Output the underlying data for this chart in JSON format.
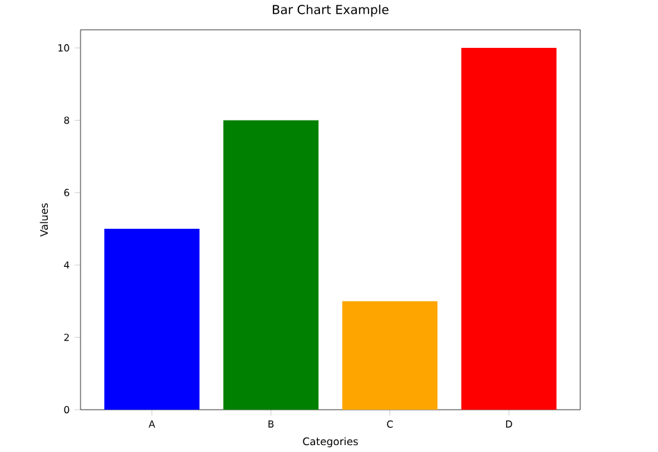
{
  "chart_data": {
    "type": "bar",
    "title": "Bar Chart Example",
    "xlabel": "Categories",
    "ylabel": "Values",
    "categories": [
      "A",
      "B",
      "C",
      "D"
    ],
    "values": [
      5,
      8,
      3,
      10
    ],
    "colors": [
      "#0000ff",
      "#008000",
      "#ffa500",
      "#ff0000"
    ],
    "ylim": [
      0,
      10.5
    ],
    "yticks": [
      0,
      2,
      4,
      6,
      8,
      10
    ]
  }
}
